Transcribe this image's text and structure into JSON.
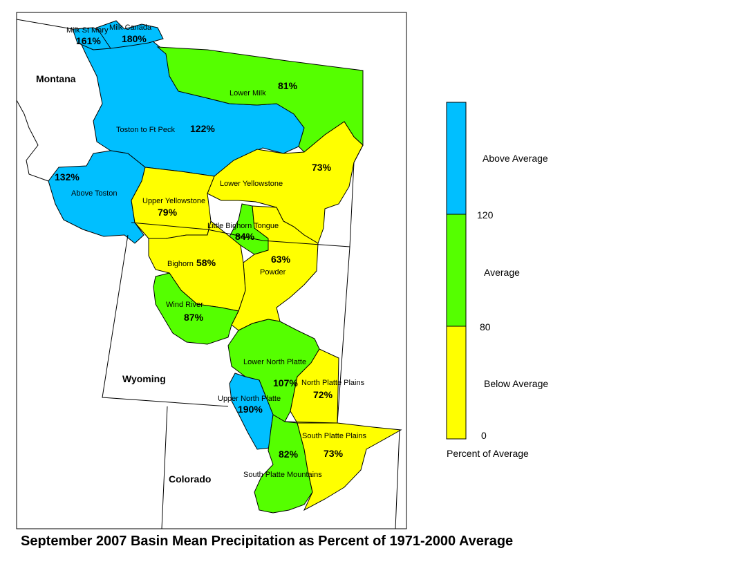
{
  "title": "September 2007 Basin Mean Precipitation as Percent of 1971-2000 Average",
  "colors": {
    "above": "#00BFFF",
    "average": "#55FF00",
    "below": "#FFFF00"
  },
  "states": [
    {
      "name": "Montana"
    },
    {
      "name": "Wyoming"
    },
    {
      "name": "Colorado"
    }
  ],
  "basins": [
    {
      "name": "Milk St Mary",
      "pct": "161%",
      "class": "above"
    },
    {
      "name": "Milk Canada",
      "pct": "180%",
      "class": "above"
    },
    {
      "name": "Lower Milk",
      "pct": "81%",
      "class": "average"
    },
    {
      "name": "Toston to Ft Peck",
      "pct": "122%",
      "class": "above"
    },
    {
      "name": "Above Toston",
      "pct": "132%",
      "class": "above"
    },
    {
      "name": "Lower Yellowstone",
      "pct": "73%",
      "class": "below"
    },
    {
      "name": "Upper Yellowstone",
      "pct": "79%",
      "class": "below"
    },
    {
      "name": "Little Bighorn Tongue",
      "pct": "84%",
      "class": "average"
    },
    {
      "name": "Bighorn",
      "pct": "58%",
      "class": "below"
    },
    {
      "name": "Powder",
      "pct": "63%",
      "class": "below"
    },
    {
      "name": "Wind River",
      "pct": "87%",
      "class": "average"
    },
    {
      "name": "Lower North Platte",
      "pct": "107%",
      "class": "average"
    },
    {
      "name": "North Platte Plains",
      "pct": "72%",
      "class": "below"
    },
    {
      "name": "Upper North Platte",
      "pct": "190%",
      "class": "above"
    },
    {
      "name": "South Platte Plains",
      "pct": "73%",
      "class": "below"
    },
    {
      "name": "South Platte Mountains",
      "pct": "82%",
      "class": "average"
    }
  ],
  "legend": {
    "title": "Percent of Average",
    "categories": [
      {
        "label": "Above Average",
        "class": "above"
      },
      {
        "label": "Average",
        "class": "average"
      },
      {
        "label": "Below Average",
        "class": "below"
      }
    ],
    "breaks": [
      "120",
      "80",
      "0"
    ]
  }
}
